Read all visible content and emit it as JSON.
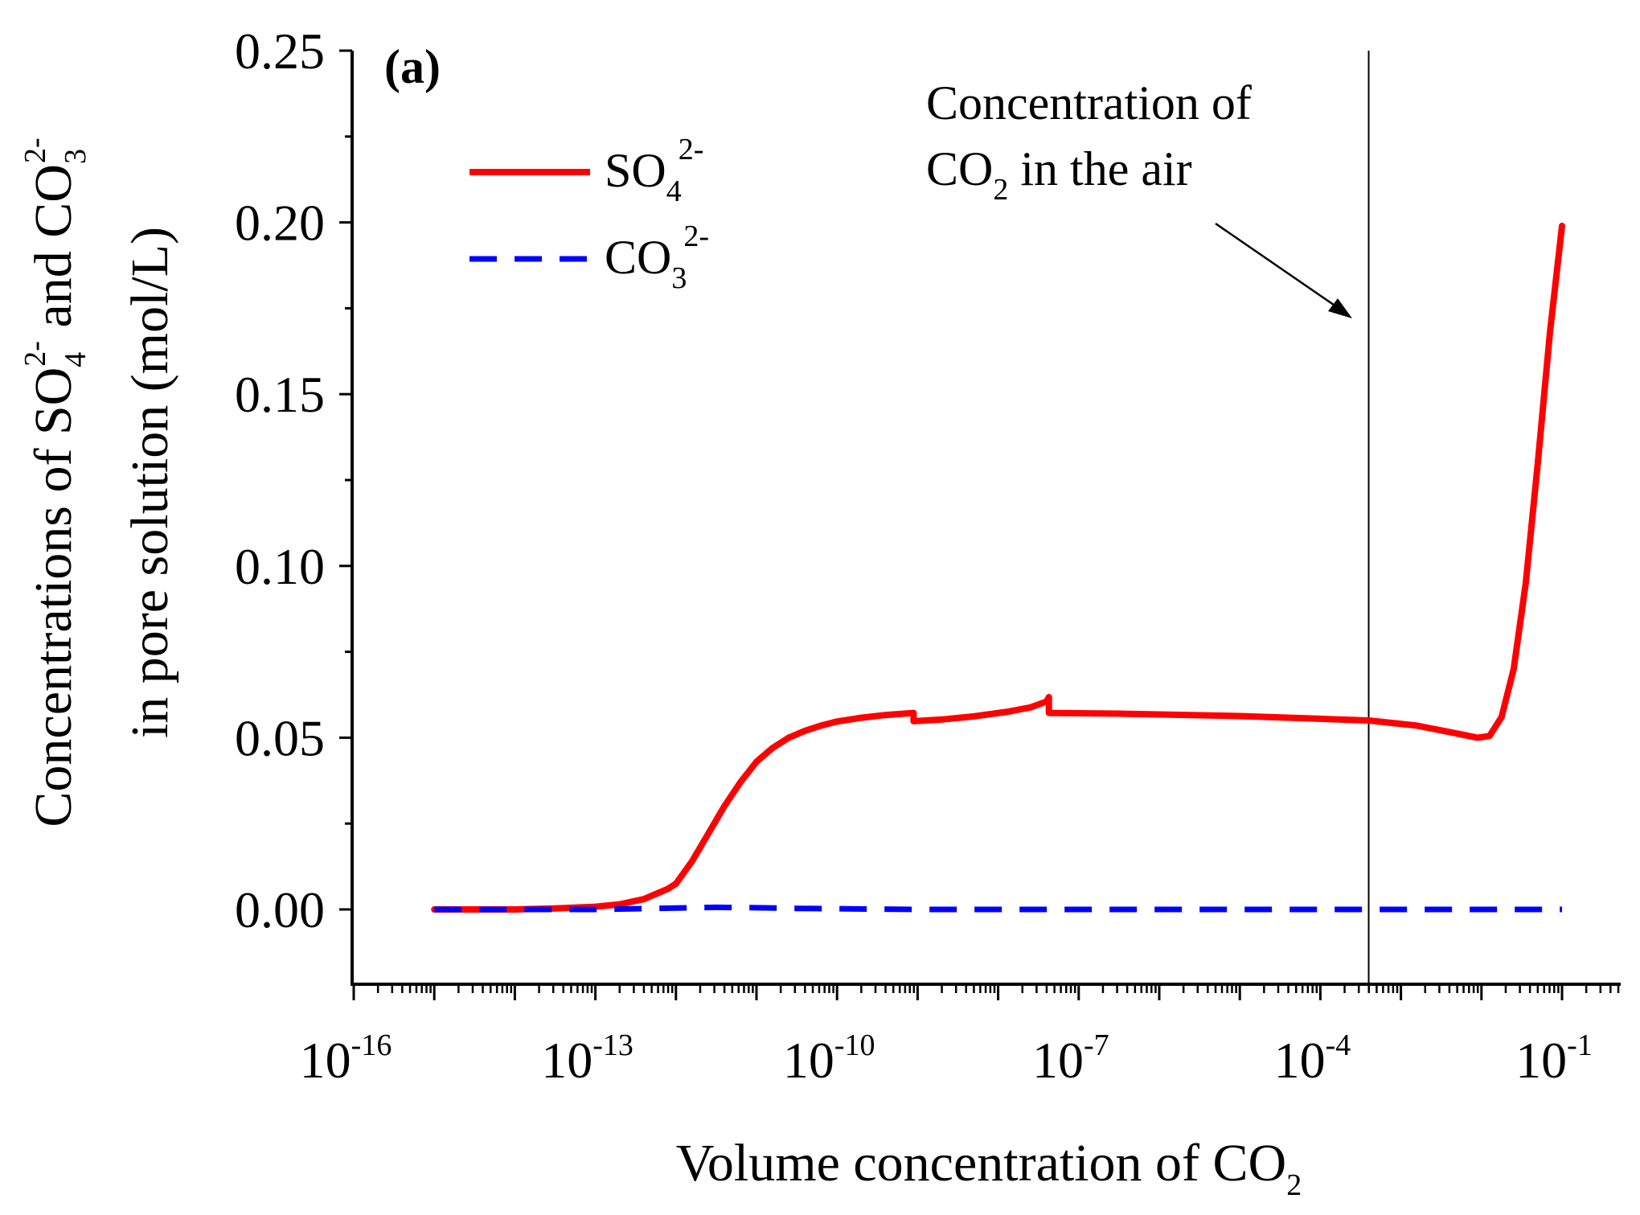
{
  "chart_data": {
    "type": "line",
    "panel_label": "(a)",
    "xscale": "log",
    "xlim_exponent": [
      -16.4,
      -0.3
    ],
    "xticks": [
      {
        "base": "10",
        "exp": "-16",
        "value_exp": -16
      },
      {
        "base": "10",
        "exp": "-13",
        "value_exp": -13
      },
      {
        "base": "10",
        "exp": "-10",
        "value_exp": -10
      },
      {
        "base": "10",
        "exp": "-7",
        "value_exp": -7
      },
      {
        "base": "10",
        "exp": "-4",
        "value_exp": -4
      },
      {
        "base": "10",
        "exp": "-1",
        "value_exp": -1
      }
    ],
    "xlabel": {
      "text": "Volume concentration of CO",
      "sub": "2"
    },
    "ylim": [
      -0.019,
      0.25
    ],
    "yticks": [
      {
        "label": "0.00",
        "value": 0.0
      },
      {
        "label": "0.05",
        "value": 0.05
      },
      {
        "label": "0.10",
        "value": 0.1
      },
      {
        "label": "0.15",
        "value": 0.15
      },
      {
        "label": "0.20",
        "value": 0.2
      },
      {
        "label": "0.25",
        "value": 0.25
      }
    ],
    "ylabel": {
      "line1": {
        "t1": "Concentrations of SO",
        "sub1": "4",
        "sup1": "2-",
        "t2": " and CO",
        "sub2": "3",
        "sup2": "2-"
      },
      "line2": "in pore solution (mol/L)"
    },
    "series": [
      {
        "name": "SO4 2-",
        "legend": {
          "base": "SO",
          "sub": "4",
          "sup": "2-"
        },
        "color": "#ff0000",
        "style": "solid",
        "points": [
          [
            -15.0,
            0.0
          ],
          [
            -14.0,
            0.0
          ],
          [
            -13.5,
            0.0003
          ],
          [
            -13.0,
            0.0008
          ],
          [
            -12.7,
            0.0015
          ],
          [
            -12.4,
            0.003
          ],
          [
            -12.1,
            0.006
          ],
          [
            -12.0,
            0.0075
          ],
          [
            -11.8,
            0.014
          ],
          [
            -11.6,
            0.022
          ],
          [
            -11.4,
            0.03
          ],
          [
            -11.2,
            0.037
          ],
          [
            -11.0,
            0.043
          ],
          [
            -10.8,
            0.047
          ],
          [
            -10.6,
            0.05
          ],
          [
            -10.4,
            0.052
          ],
          [
            -10.2,
            0.0535
          ],
          [
            -10.0,
            0.0547
          ],
          [
            -9.7,
            0.0558
          ],
          [
            -9.4,
            0.0566
          ],
          [
            -9.05,
            0.0572
          ],
          [
            -9.05,
            0.0548
          ],
          [
            -8.7,
            0.0553
          ],
          [
            -8.3,
            0.0562
          ],
          [
            -7.9,
            0.0575
          ],
          [
            -7.6,
            0.0588
          ],
          [
            -7.4,
            0.0605
          ],
          [
            -7.37,
            0.0618
          ],
          [
            -7.37,
            0.0572
          ],
          [
            -6.5,
            0.057
          ],
          [
            -5.0,
            0.0563
          ],
          [
            -4.0,
            0.0555
          ],
          [
            -3.4,
            0.055
          ],
          [
            -2.8,
            0.0535
          ],
          [
            -2.3,
            0.0512
          ],
          [
            -2.05,
            0.05
          ],
          [
            -1.9,
            0.0505
          ],
          [
            -1.75,
            0.056
          ],
          [
            -1.6,
            0.07
          ],
          [
            -1.45,
            0.095
          ],
          [
            -1.3,
            0.13
          ],
          [
            -1.15,
            0.168
          ],
          [
            -1.0,
            0.199
          ]
        ]
      },
      {
        "name": "CO3 2-",
        "legend": {
          "base": "CO",
          "sub": "3",
          "sup": "2-"
        },
        "color": "#0000ff",
        "style": "dashed",
        "points": [
          [
            -15.0,
            0.0
          ],
          [
            -13.0,
            0.0
          ],
          [
            -12.0,
            0.0004
          ],
          [
            -11.5,
            0.0006
          ],
          [
            -11.0,
            0.0005
          ],
          [
            -10.5,
            0.0003
          ],
          [
            -9.0,
            0.0
          ],
          [
            -1.0,
            0.0
          ]
        ]
      }
    ],
    "annotations": [
      {
        "type": "vline",
        "x_exp": -3.4,
        "text_line1": "Concentration of",
        "text_line2": {
          "base": "CO",
          "sub": "2",
          "rest": " in the air"
        }
      }
    ]
  }
}
